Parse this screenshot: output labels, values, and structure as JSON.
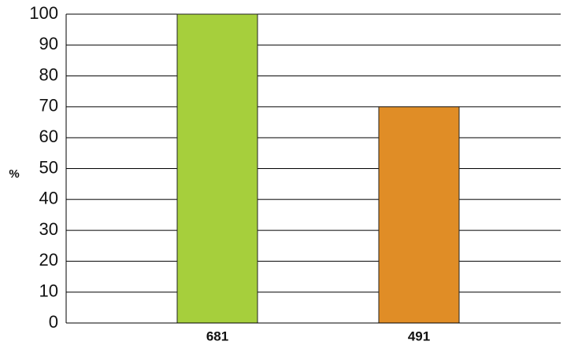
{
  "chart_data": {
    "type": "bar",
    "categories": [
      "681",
      "491"
    ],
    "values": [
      100,
      70
    ],
    "bar_colors": [
      "#a6cf3c",
      "#e08d26"
    ],
    "ylabel": "%",
    "xlabel": "",
    "ylim": [
      0,
      100
    ],
    "yticks": [
      0,
      10,
      20,
      30,
      40,
      50,
      60,
      70,
      80,
      90,
      100
    ],
    "grid": true,
    "legend": "none"
  }
}
